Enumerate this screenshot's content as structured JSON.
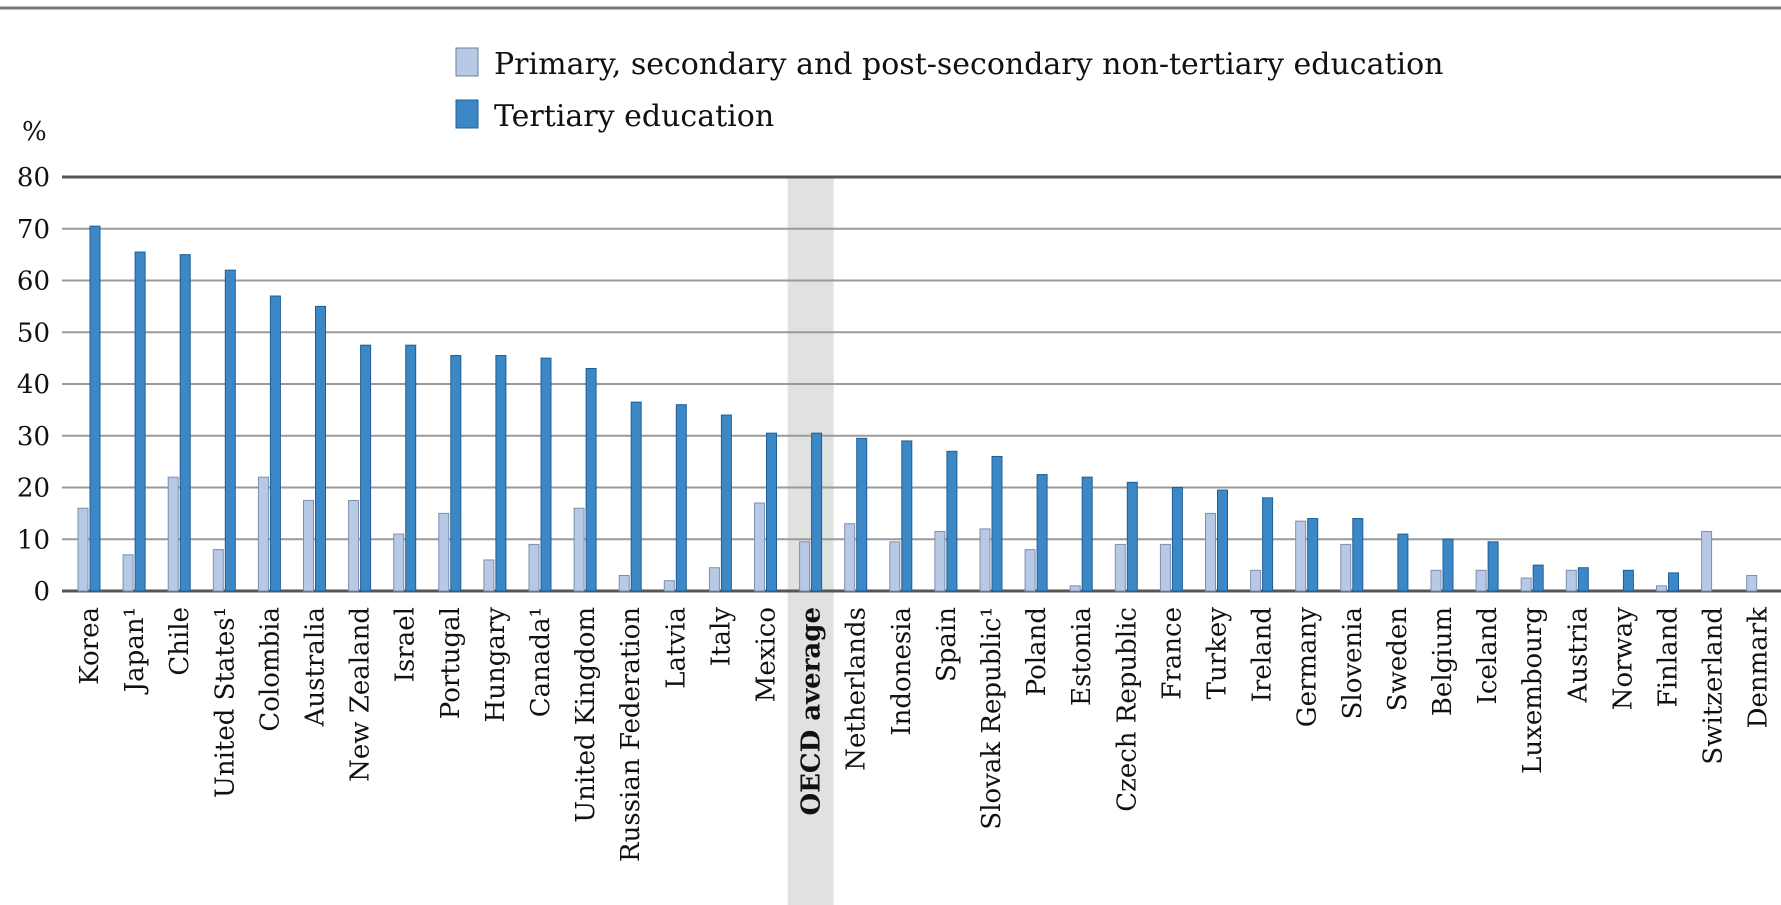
{
  "chart_data": {
    "type": "bar",
    "ylabel": "%",
    "ylim": [
      0,
      80
    ],
    "yticks": [
      0,
      10,
      20,
      30,
      40,
      50,
      60,
      70,
      80
    ],
    "grid": true,
    "legend_position": "top",
    "highlight_category": "OECD average",
    "categories": [
      "Korea",
      "Japan¹",
      "Chile",
      "United States¹",
      "Colombia",
      "Australia",
      "New Zealand",
      "Israel",
      "Portugal",
      "Hungary",
      "Canada¹",
      "United Kingdom",
      "Russian Federation",
      "Latvia",
      "Italy",
      "Mexico",
      "OECD average",
      "Netherlands",
      "Indonesia",
      "Spain",
      "Slovak Republic¹",
      "Poland",
      "Estonia",
      "Czech Republic",
      "France",
      "Turkey",
      "Ireland",
      "Germany",
      "Slovenia",
      "Sweden",
      "Belgium",
      "Iceland",
      "Luxembourg",
      "Austria",
      "Norway",
      "Finland",
      "Switzerland",
      "Denmark"
    ],
    "series": [
      {
        "name": "Primary, secondary and post-secondary non-tertiary education",
        "color": "#b8c9e6",
        "values": [
          16,
          7,
          22,
          8,
          22,
          17.5,
          17.5,
          11,
          15,
          6,
          9,
          16,
          3,
          2,
          4.5,
          17,
          9.5,
          13,
          9.5,
          11.5,
          12,
          8,
          1,
          9,
          9,
          15,
          4,
          13.5,
          9,
          0,
          4,
          4,
          2.5,
          4,
          0,
          1,
          11.5,
          3
        ]
      },
      {
        "name": "Tertiary education",
        "color": "#3c88c6",
        "values": [
          70.5,
          65.5,
          65,
          62,
          57,
          55,
          47.5,
          47.5,
          45.5,
          45.5,
          45,
          43,
          36.5,
          36,
          34,
          30.5,
          30.5,
          29.5,
          29,
          27,
          26,
          22.5,
          22,
          21,
          20,
          19.5,
          18,
          14,
          14,
          11,
          10,
          9.5,
          5,
          4.5,
          4,
          3.5,
          0,
          0
        ]
      }
    ]
  }
}
